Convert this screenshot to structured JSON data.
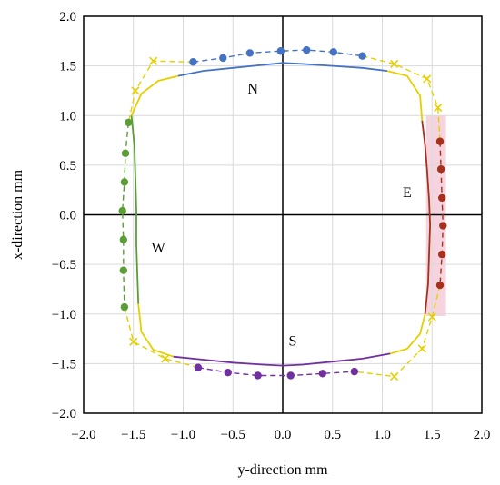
{
  "chart_data": {
    "type": "scatter",
    "xlabel": "y-direction mm",
    "ylabel": "x-direction mm",
    "xlim": [
      -2.0,
      2.0
    ],
    "ylim": [
      -2.0,
      2.0
    ],
    "xticks": [
      "−2.0",
      "−1.5",
      "−1.0",
      "−0.5",
      "0.0",
      "0.5",
      "1.0",
      "1.5",
      "2.0"
    ],
    "yticks": [
      "−2.0",
      "−1.5",
      "−1.0",
      "−0.5",
      "0.0",
      "0.5",
      "1.0",
      "1.5",
      "2.0"
    ],
    "grid": true,
    "region_labels": [
      {
        "text": "N",
        "x": -0.3,
        "y": 1.22
      },
      {
        "text": "E",
        "x": 1.25,
        "y": 0.18
      },
      {
        "text": "S",
        "x": 0.1,
        "y": -1.32
      },
      {
        "text": "W",
        "x": -1.25,
        "y": -0.38
      }
    ],
    "colors": {
      "north": "#4472C4",
      "east": "#A5301C",
      "south": "#7030A0",
      "west": "#5B9E35",
      "corner": "#E4D000",
      "east_band": "#F2C6D4"
    },
    "series": [
      {
        "kind": "solid-line",
        "color_key": "north",
        "points": [
          [
            -1.05,
            1.4
          ],
          [
            -0.8,
            1.45
          ],
          [
            -0.5,
            1.48
          ],
          [
            -0.2,
            1.51
          ],
          [
            0.0,
            1.53
          ],
          [
            0.2,
            1.52
          ],
          [
            0.5,
            1.5
          ],
          [
            0.8,
            1.48
          ],
          [
            1.05,
            1.45
          ]
        ]
      },
      {
        "kind": "dashed-line-markers",
        "color_key": "north",
        "points": [
          [
            -0.9,
            1.54
          ],
          [
            -0.6,
            1.58
          ],
          [
            -0.33,
            1.63
          ],
          [
            -0.02,
            1.65
          ],
          [
            0.24,
            1.66
          ],
          [
            0.51,
            1.64
          ],
          [
            0.8,
            1.6
          ]
        ]
      },
      {
        "kind": "solid-line",
        "color_key": "east",
        "points": [
          [
            1.4,
            0.95
          ],
          [
            1.43,
            0.7
          ],
          [
            1.45,
            0.45
          ],
          [
            1.47,
            0.15
          ],
          [
            1.48,
            -0.1
          ],
          [
            1.47,
            -0.4
          ],
          [
            1.46,
            -0.7
          ],
          [
            1.43,
            -1.0
          ]
        ]
      },
      {
        "kind": "dashed-line-markers",
        "color_key": "east",
        "points": [
          [
            1.58,
            0.74
          ],
          [
            1.59,
            0.46
          ],
          [
            1.6,
            0.17
          ],
          [
            1.61,
            -0.11
          ],
          [
            1.6,
            -0.4
          ],
          [
            1.58,
            -0.71
          ]
        ]
      },
      {
        "kind": "solid-line",
        "color_key": "south",
        "points": [
          [
            -1.1,
            -1.43
          ],
          [
            -0.8,
            -1.46
          ],
          [
            -0.5,
            -1.49
          ],
          [
            -0.2,
            -1.51
          ],
          [
            0.0,
            -1.52
          ],
          [
            0.2,
            -1.51
          ],
          [
            0.5,
            -1.48
          ],
          [
            0.8,
            -1.45
          ],
          [
            1.08,
            -1.4
          ]
        ]
      },
      {
        "kind": "dashed-line-markers",
        "color_key": "south",
        "points": [
          [
            -0.85,
            -1.54
          ],
          [
            -0.55,
            -1.59
          ],
          [
            -0.25,
            -1.62
          ],
          [
            0.08,
            -1.62
          ],
          [
            0.4,
            -1.6
          ],
          [
            0.72,
            -1.58
          ]
        ]
      },
      {
        "kind": "solid-line",
        "color_key": "west",
        "points": [
          [
            -1.52,
            1.0
          ],
          [
            -1.49,
            0.7
          ],
          [
            -1.48,
            0.4
          ],
          [
            -1.47,
            0.05
          ],
          [
            -1.47,
            -0.3
          ],
          [
            -1.46,
            -0.6
          ],
          [
            -1.45,
            -0.9
          ]
        ]
      },
      {
        "kind": "dashed-line-markers",
        "color_key": "west",
        "points": [
          [
            -1.55,
            0.93
          ],
          [
            -1.58,
            0.62
          ],
          [
            -1.59,
            0.33
          ],
          [
            -1.61,
            0.04
          ],
          [
            -1.6,
            -0.25
          ],
          [
            -1.6,
            -0.56
          ],
          [
            -1.59,
            -0.93
          ]
        ]
      },
      {
        "kind": "solid-line",
        "color_key": "corner",
        "points": [
          [
            -1.05,
            1.4
          ],
          [
            -1.25,
            1.35
          ],
          [
            -1.42,
            1.22
          ],
          [
            -1.52,
            1.0
          ]
        ]
      },
      {
        "kind": "solid-line",
        "color_key": "corner",
        "points": [
          [
            1.05,
            1.45
          ],
          [
            1.25,
            1.4
          ],
          [
            1.38,
            1.2
          ],
          [
            1.4,
            0.95
          ]
        ]
      },
      {
        "kind": "solid-line",
        "color_key": "corner",
        "points": [
          [
            1.43,
            -1.0
          ],
          [
            1.38,
            -1.2
          ],
          [
            1.25,
            -1.35
          ],
          [
            1.08,
            -1.4
          ]
        ]
      },
      {
        "kind": "solid-line",
        "color_key": "corner",
        "points": [
          [
            -1.45,
            -0.9
          ],
          [
            -1.42,
            -1.18
          ],
          [
            -1.3,
            -1.36
          ],
          [
            -1.1,
            -1.43
          ]
        ]
      },
      {
        "kind": "dashed-line-x-markers",
        "color_key": "corner",
        "points": [
          [
            -0.9,
            1.54
          ],
          [
            -1.3,
            1.55
          ],
          [
            -1.48,
            1.25
          ],
          [
            -1.55,
            0.93
          ]
        ]
      },
      {
        "kind": "dashed-line-x-markers",
        "color_key": "corner",
        "points": [
          [
            0.8,
            1.6
          ],
          [
            1.12,
            1.52
          ],
          [
            1.45,
            1.37
          ],
          [
            1.56,
            1.08
          ],
          [
            1.58,
            0.74
          ]
        ]
      },
      {
        "kind": "dashed-line-x-markers",
        "color_key": "corner",
        "points": [
          [
            1.58,
            -0.71
          ],
          [
            1.5,
            -1.03
          ],
          [
            1.4,
            -1.35
          ],
          [
            1.12,
            -1.63
          ],
          [
            0.72,
            -1.58
          ]
        ]
      },
      {
        "kind": "dashed-line-x-markers",
        "color_key": "corner",
        "points": [
          [
            -0.85,
            -1.54
          ],
          [
            -1.18,
            -1.45
          ],
          [
            -1.5,
            -1.28
          ],
          [
            -1.59,
            -0.93
          ]
        ]
      }
    ]
  }
}
